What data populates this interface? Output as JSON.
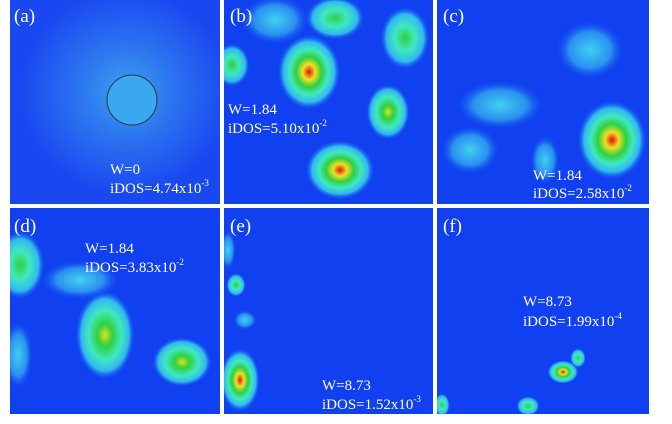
{
  "panels": [
    {
      "label": "(a)",
      "w": "W=0",
      "idos": "iDOS=4.74x10",
      "exp": "-3"
    },
    {
      "label": "(b)",
      "w": "W=1.84",
      "idos": "iDOS=5.10x10",
      "exp": "-2"
    },
    {
      "label": "(c)",
      "w": "W=1.84",
      "idos": "iDOS=2.58x10",
      "exp": "-2"
    },
    {
      "label": "(d)",
      "w": "W=1.84",
      "idos": "iDOS=3.83x10",
      "exp": "-2"
    },
    {
      "label": "(e)",
      "w": "W=8.73",
      "idos": "iDOS=1.52x10",
      "exp": "-3"
    },
    {
      "label": "(f)",
      "w": "W=8.73",
      "idos": "iDOS=1.99x10",
      "exp": "-4"
    }
  ]
}
